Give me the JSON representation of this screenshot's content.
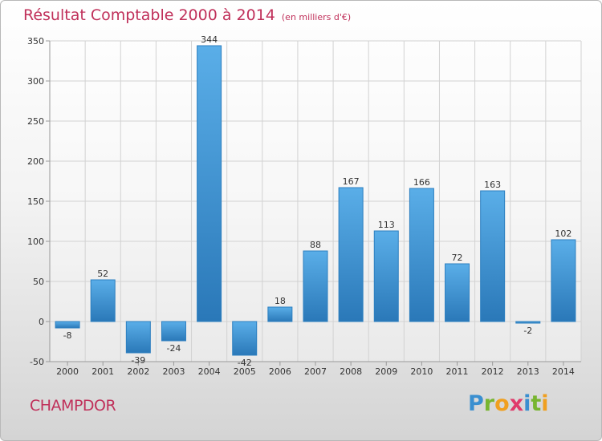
{
  "chart_data": {
    "type": "bar",
    "title": "Résultat Comptable 2000 à 2014",
    "subtitle": "(en milliers d'€)",
    "categories": [
      "2000",
      "2001",
      "2002",
      "2003",
      "2004",
      "2005",
      "2006",
      "2007",
      "2008",
      "2009",
      "2010",
      "2011",
      "2012",
      "2013",
      "2014"
    ],
    "values": [
      -8,
      52,
      -39,
      -24,
      344,
      -42,
      18,
      88,
      167,
      113,
      166,
      72,
      163,
      -2,
      102
    ],
    "value_labels": [
      "-8",
      "52",
      "-39",
      "-24",
      "344",
      "-42",
      "18",
      "88",
      "167",
      "113",
      "166",
      "72",
      "163",
      "-2",
      "102"
    ],
    "yticks": [
      -50,
      0,
      50,
      100,
      150,
      200,
      250,
      300,
      350
    ],
    "ylim": [
      -50,
      350
    ],
    "grid": true,
    "xlabel": "",
    "ylabel": "",
    "colors": {
      "bar_light": "#5aaee8",
      "bar_dark": "#2a78b8",
      "bar_stroke": "#2c7fc0"
    }
  },
  "footer": {
    "town": "CHAMPDOR",
    "brand": "Proxiti",
    "brand_letters": [
      "P",
      "r",
      "o",
      "x",
      "i",
      "t",
      "i"
    ]
  }
}
